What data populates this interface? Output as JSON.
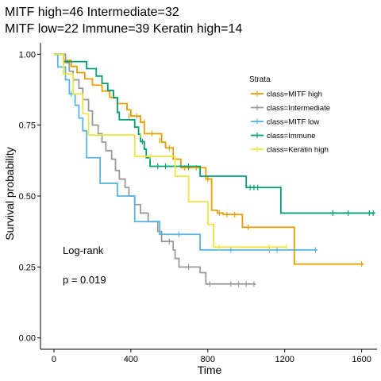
{
  "chart_data": {
    "type": "line",
    "title_line1": "MITF high=46 Intermediate=32",
    "title_line2": "MITF low=22 Immune=39 Keratin high=14",
    "xlabel": "Time",
    "ylabel": "Survival probability",
    "xlim": [
      -70,
      1680
    ],
    "ylim": [
      -0.04,
      1.04
    ],
    "x_ticks": [
      0,
      400,
      800,
      1200,
      1600
    ],
    "y_ticks": [
      0.0,
      0.25,
      0.5,
      0.75,
      1.0
    ],
    "y_tick_labels": [
      "0.00",
      "0.25",
      "0.50",
      "0.75",
      "1.00"
    ],
    "grid": false,
    "legend": {
      "title": "Strata",
      "position": "top-right"
    },
    "annotations": [
      "Log-rank",
      "p = 0.019"
    ],
    "series": [
      {
        "name": "class=MITF high",
        "color": "#E69F00",
        "steps": [
          [
            0,
            1.0
          ],
          [
            50,
            0.978
          ],
          [
            90,
            0.957
          ],
          [
            120,
            0.935
          ],
          [
            160,
            0.913
          ],
          [
            200,
            0.891
          ],
          [
            250,
            0.87
          ],
          [
            290,
            0.848
          ],
          [
            330,
            0.826
          ],
          [
            380,
            0.804
          ],
          [
            400,
            0.782
          ],
          [
            450,
            0.76
          ],
          [
            470,
            0.72
          ],
          [
            560,
            0.69
          ],
          [
            580,
            0.67
          ],
          [
            620,
            0.63
          ],
          [
            660,
            0.6
          ],
          [
            790,
            0.56
          ],
          [
            820,
            0.45
          ],
          [
            850,
            0.44
          ],
          [
            880,
            0.435
          ],
          [
            980,
            0.39
          ],
          [
            1250,
            0.26
          ]
        ],
        "end": 1610,
        "censor": [
          [
            390,
            0.782
          ],
          [
            430,
            0.782
          ],
          [
            470,
            0.76
          ],
          [
            510,
            0.72
          ],
          [
            550,
            0.695
          ],
          [
            600,
            0.67
          ],
          [
            680,
            0.6
          ],
          [
            700,
            0.6
          ],
          [
            740,
            0.6
          ],
          [
            800,
            0.56
          ],
          [
            860,
            0.44
          ],
          [
            900,
            0.435
          ],
          [
            940,
            0.435
          ],
          [
            1010,
            0.39
          ],
          [
            1600,
            0.26
          ]
        ]
      },
      {
        "name": "class=Intermediate",
        "color": "#999999",
        "steps": [
          [
            0,
            1.0
          ],
          [
            60,
            0.97
          ],
          [
            80,
            0.94
          ],
          [
            100,
            0.91
          ],
          [
            130,
            0.88
          ],
          [
            150,
            0.84
          ],
          [
            180,
            0.8
          ],
          [
            200,
            0.75
          ],
          [
            230,
            0.72
          ],
          [
            250,
            0.69
          ],
          [
            270,
            0.66
          ],
          [
            300,
            0.63
          ],
          [
            320,
            0.59
          ],
          [
            340,
            0.56
          ],
          [
            370,
            0.53
          ],
          [
            390,
            0.5
          ],
          [
            420,
            0.47
          ],
          [
            450,
            0.44
          ],
          [
            490,
            0.41
          ],
          [
            540,
            0.375
          ],
          [
            560,
            0.34
          ],
          [
            620,
            0.31
          ],
          [
            630,
            0.28
          ],
          [
            650,
            0.25
          ],
          [
            760,
            0.23
          ],
          [
            790,
            0.19
          ]
        ],
        "end": 1050,
        "censor": [
          [
            600,
            0.34
          ],
          [
            700,
            0.25
          ],
          [
            810,
            0.19
          ],
          [
            920,
            0.19
          ],
          [
            960,
            0.19
          ],
          [
            1000,
            0.19
          ],
          [
            1040,
            0.19
          ]
        ]
      },
      {
        "name": "class=MITF low",
        "color": "#56B4E9",
        "steps": [
          [
            0,
            1.0
          ],
          [
            20,
            0.955
          ],
          [
            60,
            0.91
          ],
          [
            80,
            0.86
          ],
          [
            110,
            0.82
          ],
          [
            130,
            0.775
          ],
          [
            150,
            0.73
          ],
          [
            170,
            0.635
          ],
          [
            240,
            0.545
          ],
          [
            330,
            0.5
          ],
          [
            420,
            0.41
          ],
          [
            550,
            0.365
          ],
          [
            760,
            0.31
          ]
        ],
        "end": 1370,
        "censor": [
          [
            90,
            0.86
          ],
          [
            650,
            0.365
          ],
          [
            920,
            0.31
          ],
          [
            1120,
            0.31
          ],
          [
            1160,
            0.31
          ],
          [
            1360,
            0.31
          ]
        ]
      },
      {
        "name": "class=Immune",
        "color": "#009E73",
        "steps": [
          [
            0,
            1.0
          ],
          [
            50,
            0.974
          ],
          [
            170,
            0.949
          ],
          [
            220,
            0.923
          ],
          [
            250,
            0.897
          ],
          [
            280,
            0.872
          ],
          [
            310,
            0.846
          ],
          [
            330,
            0.795
          ],
          [
            340,
            0.769
          ],
          [
            420,
            0.743
          ],
          [
            440,
            0.718
          ],
          [
            450,
            0.692
          ],
          [
            470,
            0.665
          ],
          [
            480,
            0.635
          ],
          [
            500,
            0.605
          ],
          [
            760,
            0.57
          ],
          [
            1000,
            0.53
          ],
          [
            1180,
            0.44
          ]
        ],
        "end": 1670,
        "censor": [
          [
            460,
            0.692
          ],
          [
            540,
            0.605
          ],
          [
            580,
            0.605
          ],
          [
            700,
            0.605
          ],
          [
            1020,
            0.53
          ],
          [
            1040,
            0.53
          ],
          [
            1060,
            0.53
          ],
          [
            1450,
            0.44
          ],
          [
            1530,
            0.44
          ],
          [
            1640,
            0.44
          ],
          [
            1660,
            0.44
          ]
        ]
      },
      {
        "name": "class=Keratin high",
        "color": "#F0E442",
        "steps": [
          [
            0,
            1.0
          ],
          [
            50,
            0.93
          ],
          [
            100,
            0.86
          ],
          [
            150,
            0.79
          ],
          [
            180,
            0.715
          ],
          [
            320,
            0.715
          ],
          [
            380,
            0.715
          ],
          [
            420,
            0.64
          ],
          [
            630,
            0.57
          ],
          [
            700,
            0.48
          ],
          [
            800,
            0.4
          ],
          [
            830,
            0.32
          ]
        ],
        "end": 1210,
        "censor": [
          [
            450,
            0.715
          ],
          [
            500,
            0.64
          ],
          [
            860,
            0.32
          ],
          [
            1120,
            0.32
          ],
          [
            1210,
            0.32
          ]
        ]
      }
    ]
  }
}
